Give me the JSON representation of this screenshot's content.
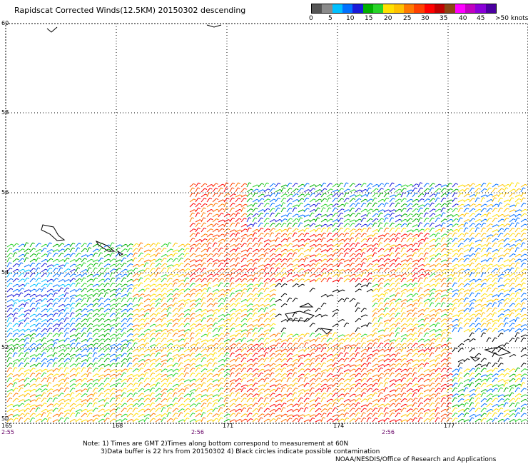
{
  "title": "Rapidscat Corrected Winds(12.5KM) 20150302 descending",
  "colorbar": {
    "colors": [
      "#555555",
      "#8a8a8a",
      "#00c0ff",
      "#0070ff",
      "#1a1ad8",
      "#00b000",
      "#28d428",
      "#ffe000",
      "#ffc000",
      "#ff7800",
      "#ff4000",
      "#ff0000",
      "#c00000",
      "#8b4513",
      "#ff00ff",
      "#c000c0",
      "#8a00d8",
      "#4b00a0"
    ],
    "labels": [
      {
        "text": "0",
        "at": 0.0
      },
      {
        "text": "5",
        "at": 0.11
      },
      {
        "text": "10",
        "at": 0.215
      },
      {
        "text": "15",
        "at": 0.32
      },
      {
        "text": "20",
        "at": 0.43
      },
      {
        "text": "25",
        "at": 0.54
      },
      {
        "text": "30",
        "at": 0.645
      },
      {
        "text": "35",
        "at": 0.75
      },
      {
        "text": "40",
        "at": 0.86
      },
      {
        "text": "45",
        "at": 0.965
      },
      {
        "text": ">50 knots",
        "at": 1.07
      }
    ]
  },
  "latitudes": [
    "60",
    "58",
    "56",
    "54",
    "52",
    "50"
  ],
  "longitudes": [
    "165",
    "168",
    "171",
    "174",
    "177"
  ],
  "times": [
    "2:55",
    "2:56",
    "2:56"
  ],
  "notes": {
    "line1": "Note: 1) Times are GMT 2)Times along bottom correspond to measurement at 60N",
    "line2": "3)Data buffer is 22 hrs from 20150302 4) Black circles indicate possible contamination",
    "line3": "NOAA/NESDIS/Office of Research and Applications"
  }
}
